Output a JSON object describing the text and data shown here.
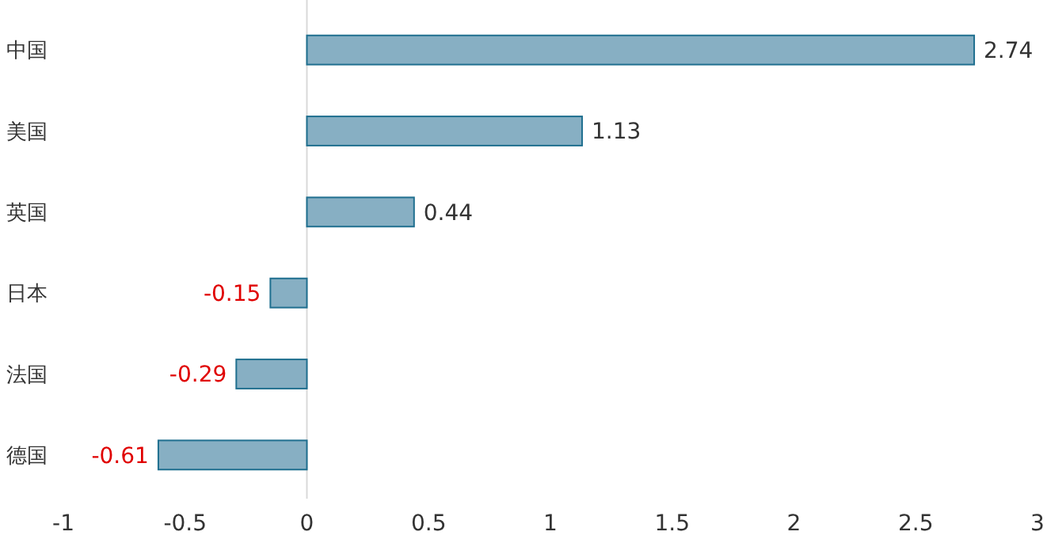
{
  "chart_data": {
    "type": "bar",
    "orientation": "horizontal",
    "categories": [
      "中国",
      "美国",
      "英国",
      "日本",
      "法国",
      "德国"
    ],
    "values": [
      2.74,
      1.13,
      0.44,
      -0.15,
      -0.29,
      -0.61
    ],
    "color": "#87afc3",
    "xlim": [
      -1,
      3
    ],
    "xticks": [
      -1,
      -0.5,
      0,
      0.5,
      1,
      1.5,
      2,
      2.5,
      3
    ],
    "data_labels": true
  }
}
